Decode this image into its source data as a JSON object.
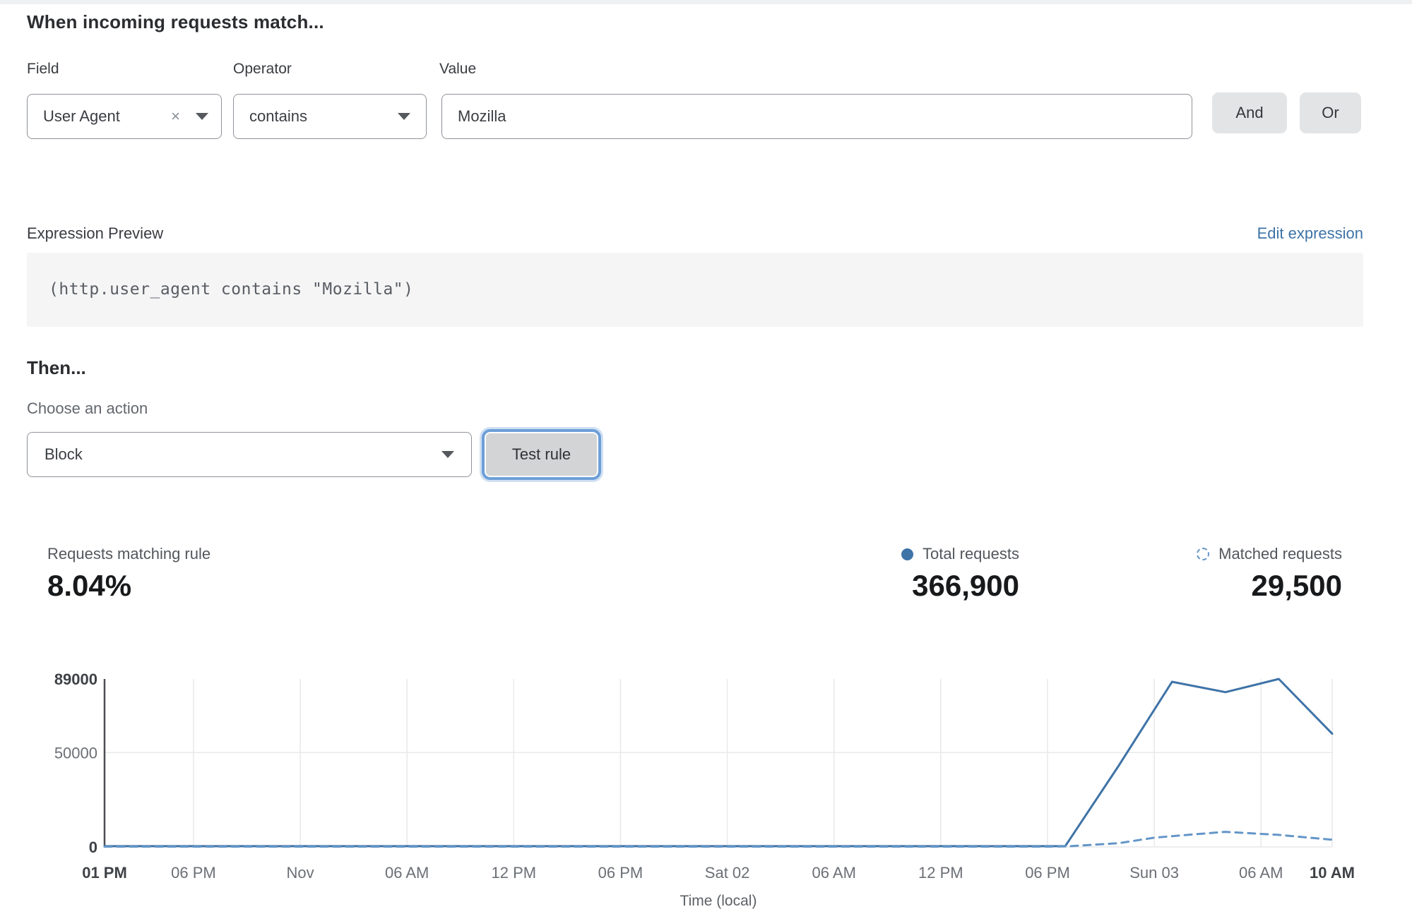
{
  "header": {
    "title": "When incoming requests match..."
  },
  "rule_builder": {
    "field_label": "Field",
    "operator_label": "Operator",
    "value_label": "Value",
    "field_value": "User Agent",
    "clear_icon": "×",
    "operator_value": "contains",
    "value_value": "Mozilla",
    "and_label": "And",
    "or_label": "Or"
  },
  "expression": {
    "label": "Expression Preview",
    "edit_link": "Edit expression",
    "code": "(http.user_agent contains \"Mozilla\")"
  },
  "action": {
    "heading": "Then...",
    "choose_label": "Choose an action",
    "selected_action": "Block",
    "test_button": "Test rule"
  },
  "stats": {
    "matching": {
      "label": "Requests matching rule",
      "value": "8.04%"
    },
    "total": {
      "label": "Total requests",
      "value": "366,900"
    },
    "matched": {
      "label": "Matched requests",
      "value": "29,500"
    }
  },
  "colors": {
    "total_line": "#3e73a7",
    "matched_line": "#6496c8",
    "link_blue": "#3e73a7",
    "grid": "#e8e9ea",
    "axis": "#4b4e53",
    "tick_gray": "#6b6f75",
    "tick_bold": "#3e4146"
  },
  "chart_data": {
    "type": "line",
    "title": "",
    "xlabel": "Time (local)",
    "ylabel": "",
    "ylim": [
      0,
      89000
    ],
    "grid": true,
    "legend_position": "top-right",
    "total_hours": 69,
    "yticks": [
      {
        "value": 0,
        "label": "0",
        "bold": true
      },
      {
        "value": 50000,
        "label": "50000",
        "bold": false
      },
      {
        "value": 89000,
        "label": "89000",
        "bold": true
      }
    ],
    "xticks": [
      {
        "h": 0,
        "label": "01 PM",
        "bold": true
      },
      {
        "h": 5,
        "label": "06 PM",
        "bold": false
      },
      {
        "h": 11,
        "label": "Nov",
        "bold": false
      },
      {
        "h": 17,
        "label": "06 AM",
        "bold": false
      },
      {
        "h": 23,
        "label": "12 PM",
        "bold": false
      },
      {
        "h": 29,
        "label": "06 PM",
        "bold": false
      },
      {
        "h": 35,
        "label": "Sat 02",
        "bold": false
      },
      {
        "h": 41,
        "label": "06 AM",
        "bold": false
      },
      {
        "h": 47,
        "label": "12 PM",
        "bold": false
      },
      {
        "h": 53,
        "label": "06 PM",
        "bold": false
      },
      {
        "h": 59,
        "label": "Sun 03",
        "bold": false
      },
      {
        "h": 65,
        "label": "06 AM",
        "bold": false
      },
      {
        "h": 69,
        "label": "10 AM",
        "bold": true
      }
    ],
    "series": [
      {
        "name": "Total requests",
        "style": "solid",
        "color": "#3e73a7",
        "points": [
          [
            0,
            400
          ],
          [
            5,
            400
          ],
          [
            11,
            400
          ],
          [
            17,
            400
          ],
          [
            23,
            400
          ],
          [
            29,
            400
          ],
          [
            35,
            400
          ],
          [
            41,
            400
          ],
          [
            47,
            400
          ],
          [
            53,
            400
          ],
          [
            54,
            500
          ],
          [
            57,
            43000
          ],
          [
            60,
            87500
          ],
          [
            63,
            82000
          ],
          [
            66,
            89000
          ],
          [
            69,
            60000
          ]
        ]
      },
      {
        "name": "Matched requests",
        "style": "dashed",
        "color": "#6496c8",
        "points": [
          [
            0,
            150
          ],
          [
            5,
            150
          ],
          [
            11,
            150
          ],
          [
            17,
            150
          ],
          [
            23,
            150
          ],
          [
            29,
            150
          ],
          [
            35,
            150
          ],
          [
            41,
            150
          ],
          [
            47,
            150
          ],
          [
            53,
            150
          ],
          [
            54,
            250
          ],
          [
            57,
            2000
          ],
          [
            59,
            4900
          ],
          [
            61,
            6500
          ],
          [
            63,
            8000
          ],
          [
            66,
            6400
          ],
          [
            69,
            3800
          ]
        ]
      }
    ]
  }
}
